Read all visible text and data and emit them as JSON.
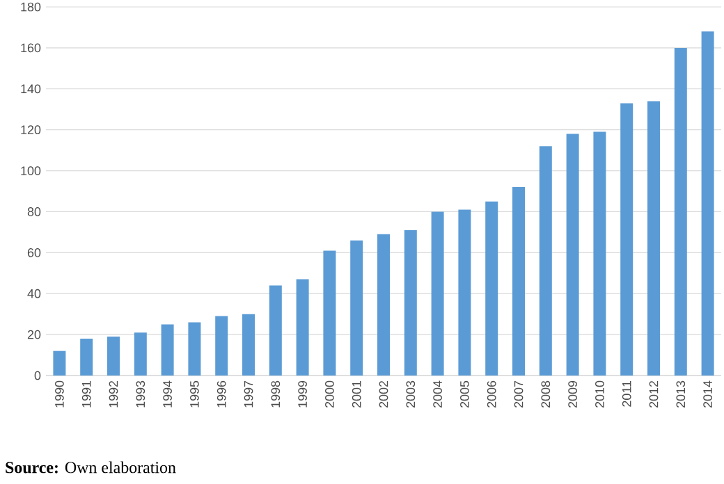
{
  "chart_data": {
    "type": "bar",
    "categories": [
      "1990",
      "1991",
      "1992",
      "1993",
      "1994",
      "1995",
      "1996",
      "1997",
      "1998",
      "1999",
      "2000",
      "2001",
      "2002",
      "2003",
      "2004",
      "2005",
      "2006",
      "2007",
      "2008",
      "2009",
      "2010",
      "2011",
      "2012",
      "2013",
      "2014"
    ],
    "values": [
      12,
      18,
      19,
      21,
      25,
      26,
      29,
      30,
      44,
      47,
      61,
      66,
      69,
      71,
      80,
      81,
      85,
      92,
      112,
      118,
      119,
      133,
      134,
      160,
      168
    ],
    "color": "#5b9bd5",
    "ylim": [
      0,
      180
    ],
    "yticks": [
      0,
      20,
      40,
      60,
      80,
      100,
      120,
      140,
      160,
      180
    ],
    "grid": "y",
    "annotations": [
      "**Source:** Own elaboration"
    ]
  }
}
